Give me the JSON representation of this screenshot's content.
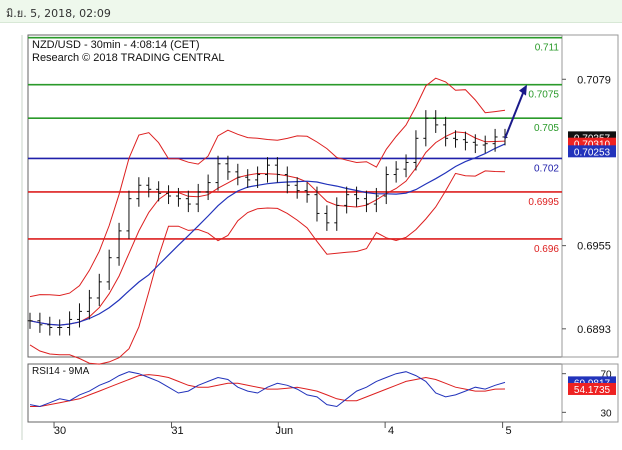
{
  "header": {
    "datetime": "มิ.ย. 5, 2018, 02:09"
  },
  "chart_data": {
    "type": "candlestick",
    "title": "NZD/USD - 30min - 4:08:14 (CET)",
    "subtitle": "Research © 2018 TRADING CENTRAL",
    "y_ticks": [
      0.7079,
      0.6955,
      0.6893
    ],
    "ylim": [
      0.6872,
      0.7112
    ],
    "x_ticks": [
      "30",
      "31",
      "Jun",
      "4",
      "5"
    ],
    "grid": false,
    "price_series": {
      "x": [
        0,
        1,
        2,
        3,
        4,
        5,
        6,
        7,
        8,
        9,
        10,
        11,
        12,
        13,
        14,
        15,
        16,
        17,
        18,
        19,
        20,
        21,
        22,
        23,
        24,
        25,
        26,
        27,
        28,
        29,
        30,
        31,
        32,
        33,
        34,
        35,
        36,
        37,
        38,
        39,
        40,
        41,
        42,
        43,
        44,
        45,
        46,
        47,
        48
      ],
      "close": [
        0.6899,
        0.6896,
        0.6894,
        0.6894,
        0.69,
        0.6906,
        0.6916,
        0.6928,
        0.6946,
        0.6966,
        0.699,
        0.7,
        0.6997,
        0.6994,
        0.6992,
        0.699,
        0.6986,
        0.6995,
        0.7002,
        0.7016,
        0.701,
        0.7006,
        0.7004,
        0.7008,
        0.7015,
        0.7008,
        0.7,
        0.6996,
        0.6993,
        0.6979,
        0.6972,
        0.6985,
        0.6993,
        0.699,
        0.6986,
        0.6992,
        0.7008,
        0.7012,
        0.7017,
        0.7035,
        0.705,
        0.7045,
        0.7035,
        0.7034,
        0.7032,
        0.703,
        0.7031,
        0.7036,
        0.70357
      ]
    },
    "levels": [
      {
        "label": "0.711",
        "value": 0.711,
        "color": "#2a9a2a"
      },
      {
        "label": "0.7075",
        "value": 0.7075,
        "color": "#2a9a2a"
      },
      {
        "label": "0.705",
        "value": 0.705,
        "color": "#2a9a2a"
      },
      {
        "label": "0.702",
        "value": 0.702,
        "color": "#2020aa"
      },
      {
        "label": "0.6995",
        "value": 0.6995,
        "color": "#dd2020"
      },
      {
        "label": "0.696",
        "value": 0.696,
        "color": "#dd2020"
      }
    ],
    "price_tags": [
      {
        "label": "0.70357",
        "value": 0.70357,
        "bg": "#111111",
        "fg": "#ffffff"
      },
      {
        "label": "0.70310",
        "value": 0.7031,
        "bg": "#ee2222",
        "fg": "#ffffff"
      },
      {
        "label": "0.70253",
        "value": 0.70253,
        "bg": "#2233bb",
        "fg": "#ffffff"
      }
    ],
    "forecast_arrow": {
      "from_value": 0.7035,
      "to_value": 0.7075
    },
    "rsi": {
      "title": "RSI14 - 9MA",
      "y_ticks": [
        70,
        30
      ],
      "ylim": [
        20,
        80
      ],
      "rsi_values": [
        38,
        36,
        40,
        44,
        42,
        48,
        52,
        58,
        62,
        68,
        72,
        70,
        66,
        62,
        56,
        50,
        52,
        58,
        62,
        66,
        64,
        56,
        52,
        50,
        56,
        60,
        58,
        54,
        48,
        46,
        38,
        36,
        44,
        52,
        56,
        62,
        66,
        70,
        72,
        68,
        62,
        50,
        46,
        48,
        52,
        56,
        54,
        58,
        60.9817
      ],
      "ma_values": [
        36,
        36,
        38,
        40,
        42,
        44,
        48,
        52,
        56,
        60,
        64,
        68,
        69,
        68,
        66,
        62,
        58,
        56,
        56,
        58,
        60,
        60,
        58,
        56,
        54,
        54,
        55,
        56,
        54,
        52,
        48,
        44,
        42,
        42,
        46,
        50,
        54,
        58,
        62,
        64,
        66,
        64,
        60,
        56,
        54,
        52,
        52,
        54,
        54.1735
      ],
      "tags": [
        {
          "label": "60.9817",
          "value": 60.9817,
          "bg": "#2233bb",
          "fg": "#ffffff"
        },
        {
          "label": "54.1735",
          "value": 54.1735,
          "bg": "#ee2222",
          "fg": "#ffffff"
        }
      ]
    }
  }
}
